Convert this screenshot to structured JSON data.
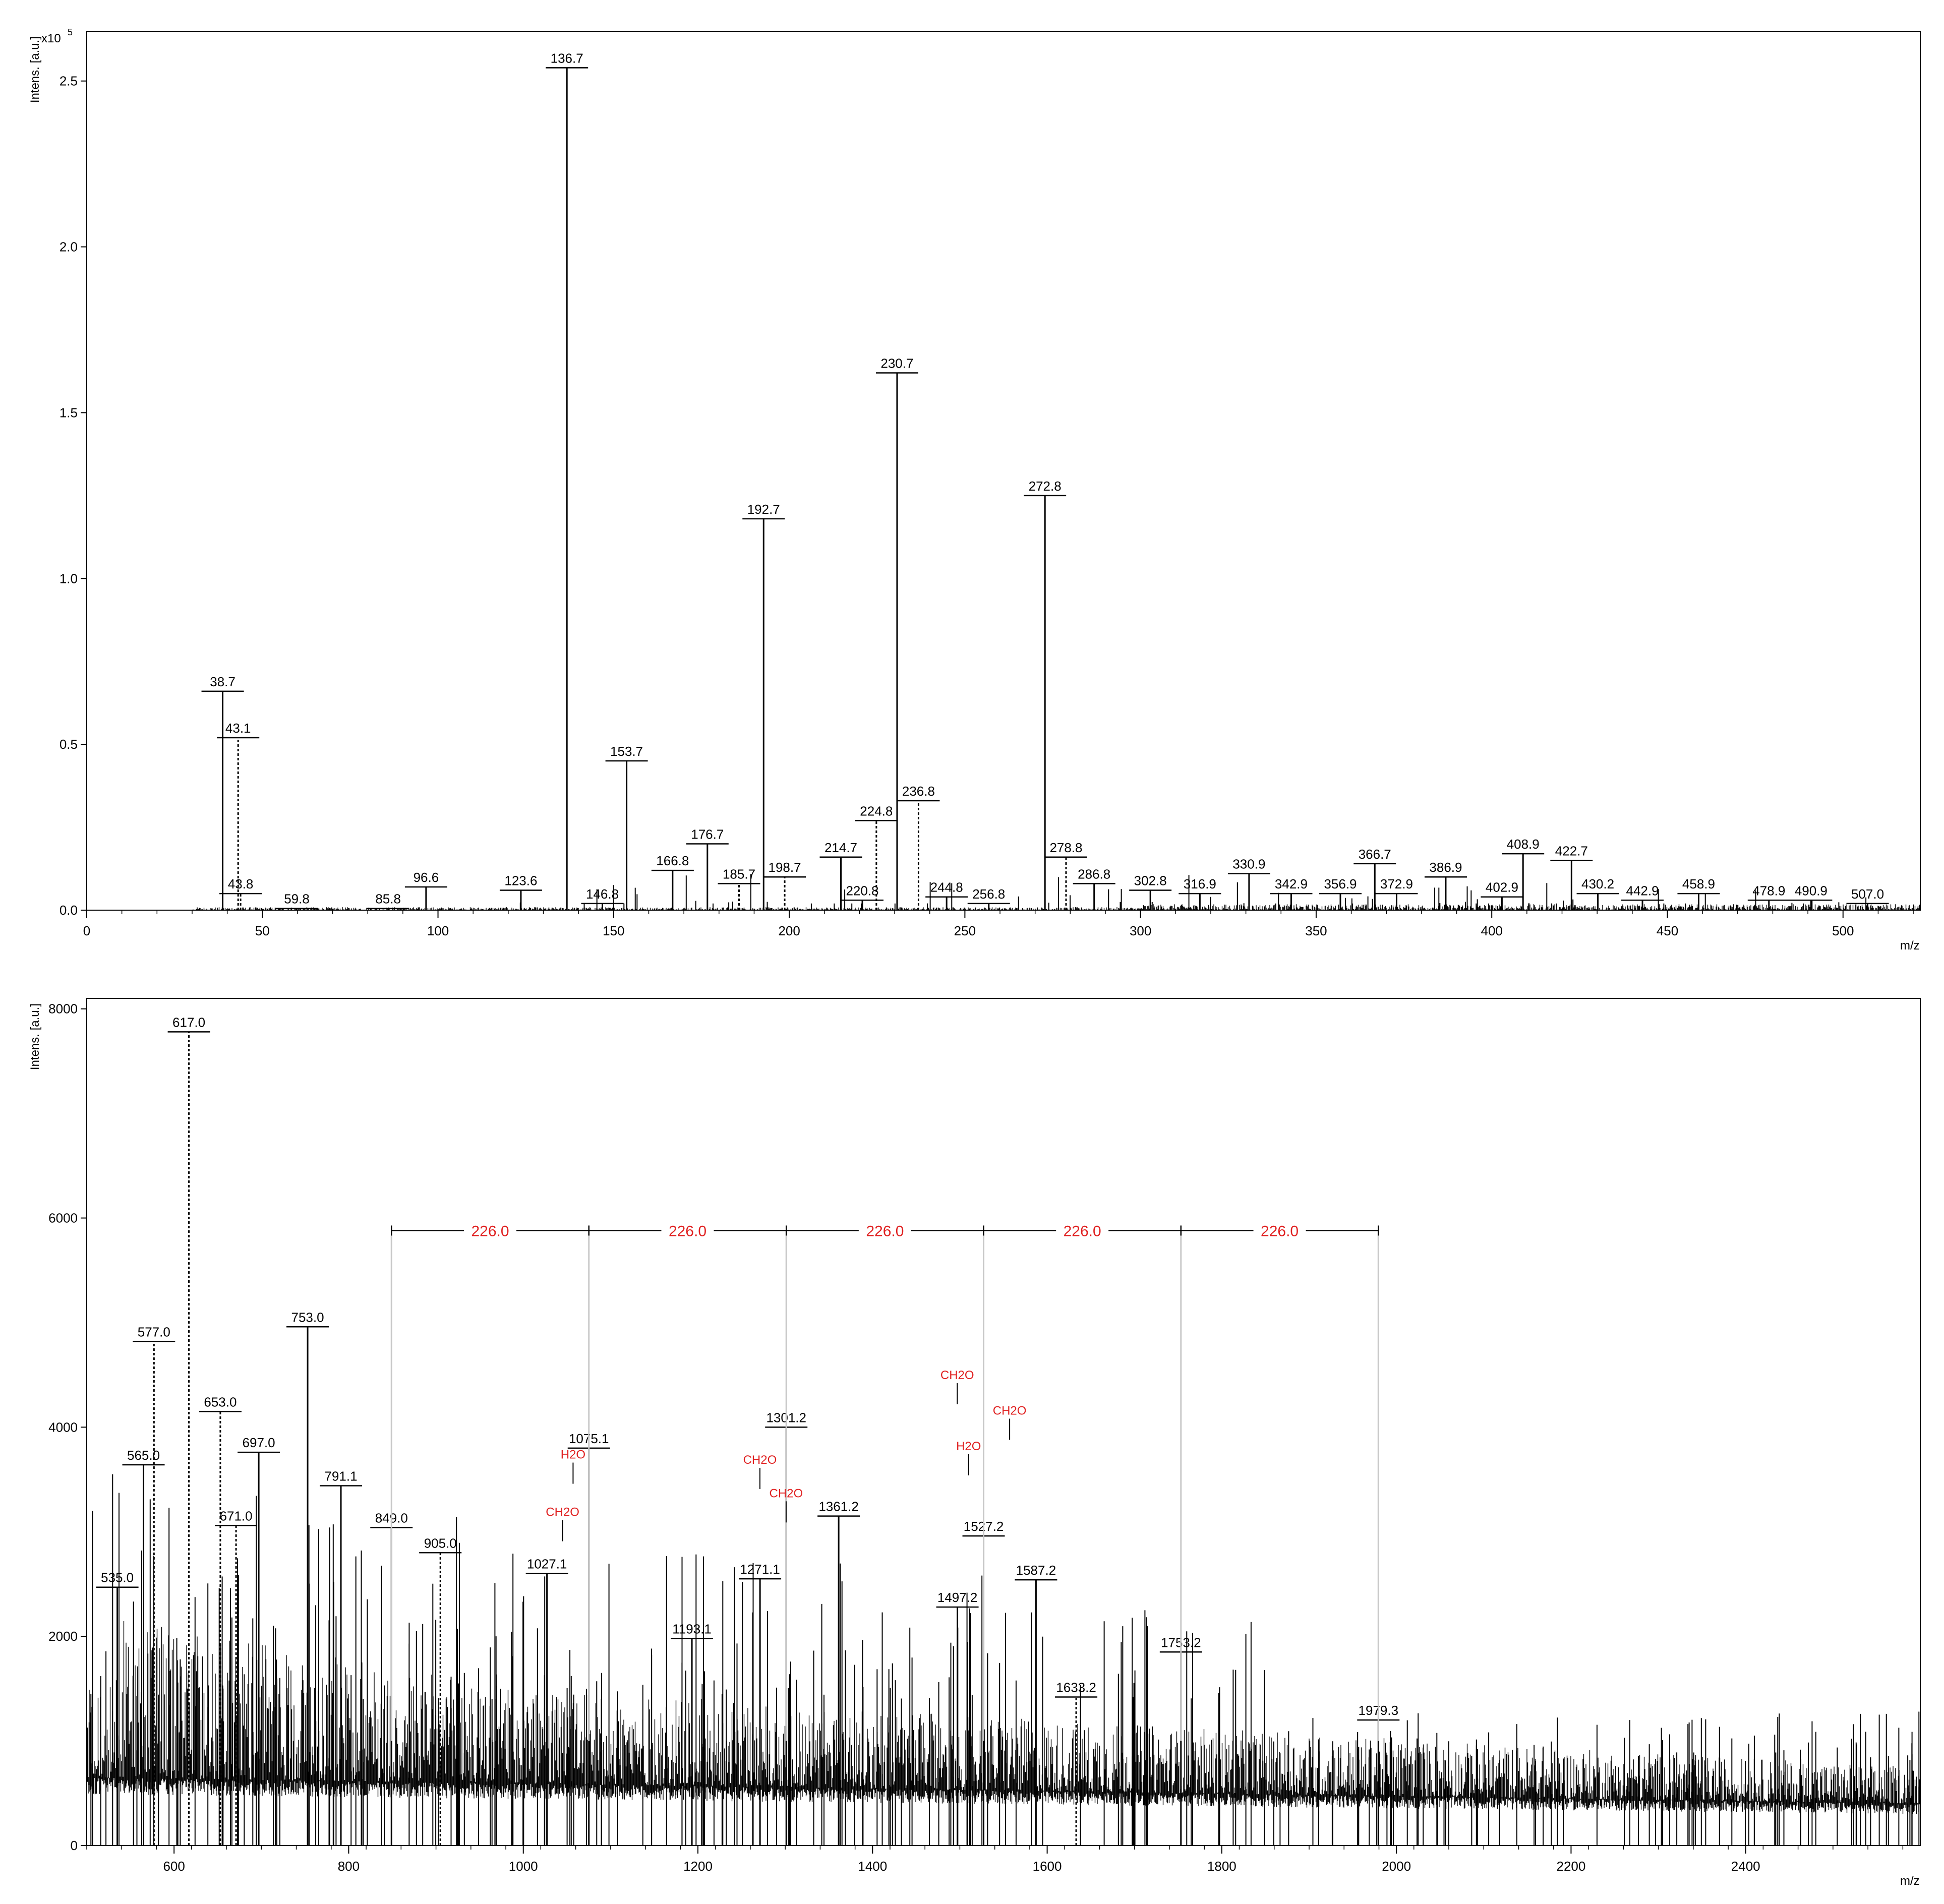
{
  "chart_data": [
    {
      "type": "bar",
      "ylabel": "Intens. [a.u.]",
      "xlabel": "m/z",
      "y_multiplier": "x10",
      "y_multiplier_exp": "5",
      "xlim": [
        0,
        522
      ],
      "ylim": [
        0,
        2.65
      ],
      "xticks": [
        0,
        50,
        100,
        150,
        200,
        250,
        300,
        350,
        400,
        450,
        500
      ],
      "yticks": [
        0.0,
        0.5,
        1.0,
        1.5,
        2.0,
        2.5
      ],
      "ytick_labels": [
        "0.0",
        "0.5",
        "1.0",
        "1.5",
        "2.0",
        "2.5"
      ],
      "peaks": [
        {
          "label": "38.7",
          "mz": 38.7,
          "intensity": 0.66,
          "style": "solid"
        },
        {
          "label": "43.1",
          "mz": 43.1,
          "intensity": 0.52,
          "style": "dotted"
        },
        {
          "label": "43.8",
          "mz": 43.8,
          "intensity": 0.05,
          "style": "dotted"
        },
        {
          "label": "59.8",
          "mz": 59.8,
          "intensity": 0.005,
          "style": "solid"
        },
        {
          "label": "85.8",
          "mz": 85.8,
          "intensity": 0.005,
          "style": "solid"
        },
        {
          "label": "96.6",
          "mz": 96.6,
          "intensity": 0.07,
          "style": "solid"
        },
        {
          "label": "123.6",
          "mz": 123.6,
          "intensity": 0.06,
          "style": "solid"
        },
        {
          "label": "136.7",
          "mz": 136.7,
          "intensity": 2.54,
          "style": "solid"
        },
        {
          "label": "146.8",
          "mz": 146.8,
          "intensity": 0.02,
          "style": "solid"
        },
        {
          "label": "153.7",
          "mz": 153.7,
          "intensity": 0.45,
          "style": "solid"
        },
        {
          "label": "166.8",
          "mz": 166.8,
          "intensity": 0.12,
          "style": "solid"
        },
        {
          "label": "176.7",
          "mz": 176.7,
          "intensity": 0.2,
          "style": "solid"
        },
        {
          "label": "185.7",
          "mz": 185.7,
          "intensity": 0.08,
          "style": "dotted"
        },
        {
          "label": "192.7",
          "mz": 192.7,
          "intensity": 1.18,
          "style": "solid"
        },
        {
          "label": "198.7",
          "mz": 198.7,
          "intensity": 0.1,
          "style": "dotted"
        },
        {
          "label": "214.7",
          "mz": 214.7,
          "intensity": 0.16,
          "style": "solid"
        },
        {
          "label": "220.8",
          "mz": 220.8,
          "intensity": 0.03,
          "style": "solid"
        },
        {
          "label": "224.8",
          "mz": 224.8,
          "intensity": 0.27,
          "style": "dotted"
        },
        {
          "label": "230.7",
          "mz": 230.7,
          "intensity": 1.62,
          "style": "solid"
        },
        {
          "label": "236.8",
          "mz": 236.8,
          "intensity": 0.33,
          "style": "dotted"
        },
        {
          "label": "244.8",
          "mz": 244.8,
          "intensity": 0.04,
          "style": "solid"
        },
        {
          "label": "256.8",
          "mz": 256.8,
          "intensity": 0.02,
          "style": "solid"
        },
        {
          "label": "272.8",
          "mz": 272.8,
          "intensity": 1.25,
          "style": "solid"
        },
        {
          "label": "278.8",
          "mz": 278.8,
          "intensity": 0.16,
          "style": "dotted"
        },
        {
          "label": "286.8",
          "mz": 286.8,
          "intensity": 0.08,
          "style": "solid"
        },
        {
          "label": "302.8",
          "mz": 302.8,
          "intensity": 0.06,
          "style": "solid"
        },
        {
          "label": "316.9",
          "mz": 316.9,
          "intensity": 0.05,
          "style": "solid"
        },
        {
          "label": "330.9",
          "mz": 330.9,
          "intensity": 0.11,
          "style": "solid"
        },
        {
          "label": "342.9",
          "mz": 342.9,
          "intensity": 0.05,
          "style": "solid"
        },
        {
          "label": "356.9",
          "mz": 356.9,
          "intensity": 0.05,
          "style": "solid"
        },
        {
          "label": "366.7",
          "mz": 366.7,
          "intensity": 0.14,
          "style": "solid"
        },
        {
          "label": "372.9",
          "mz": 372.9,
          "intensity": 0.05,
          "style": "solid"
        },
        {
          "label": "386.9",
          "mz": 386.9,
          "intensity": 0.1,
          "style": "solid"
        },
        {
          "label": "402.9",
          "mz": 402.9,
          "intensity": 0.04,
          "style": "solid"
        },
        {
          "label": "408.9",
          "mz": 408.9,
          "intensity": 0.17,
          "style": "solid"
        },
        {
          "label": "422.7",
          "mz": 422.7,
          "intensity": 0.15,
          "style": "solid"
        },
        {
          "label": "430.2",
          "mz": 430.2,
          "intensity": 0.05,
          "style": "solid"
        },
        {
          "label": "442.9",
          "mz": 442.9,
          "intensity": 0.03,
          "style": "solid"
        },
        {
          "label": "458.9",
          "mz": 458.9,
          "intensity": 0.05,
          "style": "solid"
        },
        {
          "label": "478.9",
          "mz": 478.9,
          "intensity": 0.03,
          "style": "solid"
        },
        {
          "label": "490.9",
          "mz": 490.9,
          "intensity": 0.03,
          "style": "solid"
        },
        {
          "label": "507.0",
          "mz": 507.0,
          "intensity": 0.02,
          "style": "solid"
        }
      ]
    },
    {
      "type": "bar",
      "ylabel": "Intens. [a.u.]",
      "xlabel": "m/z",
      "xlim": [
        500,
        2600
      ],
      "ylim": [
        0,
        8100
      ],
      "xticks": [
        600,
        800,
        1000,
        1200,
        1400,
        1600,
        1800,
        2000,
        2200,
        2400
      ],
      "yticks": [
        0,
        2000,
        4000,
        6000,
        8000
      ],
      "peaks": [
        {
          "label": "535.0",
          "mz": 535.0,
          "intensity": 2470,
          "style": "solid"
        },
        {
          "label": "565.0",
          "mz": 565.0,
          "intensity": 3640,
          "style": "solid"
        },
        {
          "label": "577.0",
          "mz": 577.0,
          "intensity": 4820,
          "style": "dotted"
        },
        {
          "label": "617.0",
          "mz": 617.0,
          "intensity": 7780,
          "style": "dotted"
        },
        {
          "label": "653.0",
          "mz": 653.0,
          "intensity": 4150,
          "style": "dotted"
        },
        {
          "label": "671.0",
          "mz": 671.0,
          "intensity": 3060,
          "style": "dotted"
        },
        {
          "label": "697.0",
          "mz": 697.0,
          "intensity": 3760,
          "style": "solid"
        },
        {
          "label": "753.0",
          "mz": 753.0,
          "intensity": 4960,
          "style": "solid"
        },
        {
          "label": "791.1",
          "mz": 791.1,
          "intensity": 3440,
          "style": "solid"
        },
        {
          "label": "849.0",
          "mz": 849.0,
          "intensity": 3040,
          "style": "solid"
        },
        {
          "label": "905.0",
          "mz": 905.0,
          "intensity": 2800,
          "style": "dotted"
        },
        {
          "label": "1027.1",
          "mz": 1027.1,
          "intensity": 2600,
          "style": "solid"
        },
        {
          "label": "1075.1",
          "mz": 1075.1,
          "intensity": 3800,
          "style": "solid"
        },
        {
          "label": "1193.1",
          "mz": 1193.1,
          "intensity": 1980,
          "style": "solid"
        },
        {
          "label": "1271.1",
          "mz": 1271.1,
          "intensity": 2550,
          "style": "solid"
        },
        {
          "label": "1301.2",
          "mz": 1301.2,
          "intensity": 4000,
          "style": "solid"
        },
        {
          "label": "1361.2",
          "mz": 1361.2,
          "intensity": 3150,
          "style": "solid"
        },
        {
          "label": "1497.2",
          "mz": 1497.2,
          "intensity": 2280,
          "style": "solid"
        },
        {
          "label": "1527.2",
          "mz": 1527.2,
          "intensity": 2960,
          "style": "solid"
        },
        {
          "label": "1587.2",
          "mz": 1587.2,
          "intensity": 2540,
          "style": "solid"
        },
        {
          "label": "1633.2",
          "mz": 1633.2,
          "intensity": 1420,
          "style": "dotted"
        },
        {
          "label": "1753.2",
          "mz": 1753.2,
          "intensity": 1850,
          "style": "solid"
        },
        {
          "label": "1979.3",
          "mz": 1979.3,
          "intensity": 1200,
          "style": "solid"
        }
      ],
      "mass_differences": [
        {
          "label": "226.0",
          "from": 849.0,
          "to": 1075.1
        },
        {
          "label": "226.0",
          "from": 1075.1,
          "to": 1301.2
        },
        {
          "label": "226.0",
          "from": 1301.2,
          "to": 1527.2
        },
        {
          "label": "226.0",
          "from": 1527.2,
          "to": 1753.2
        },
        {
          "label": "226.0",
          "from": 1753.2,
          "to": 1979.3
        }
      ],
      "difference_level": 5880,
      "loss_annotations": [
        {
          "label": "CH2O",
          "mz": 1045,
          "intensity": 3150
        },
        {
          "label": "H2O",
          "mz": 1057,
          "intensity": 3700
        },
        {
          "label": "CH2O",
          "mz": 1271,
          "intensity": 3650
        },
        {
          "label": "CH2O",
          "mz": 1301,
          "intensity": 3330
        },
        {
          "label": "CH2O",
          "mz": 1497,
          "intensity": 4460
        },
        {
          "label": "H2O",
          "mz": 1510,
          "intensity": 3780
        },
        {
          "label": "CH2O",
          "mz": 1557,
          "intensity": 4120
        }
      ],
      "colors": {
        "annotation": "#e02020",
        "bracket_line": "#c8c8c8"
      }
    }
  ]
}
